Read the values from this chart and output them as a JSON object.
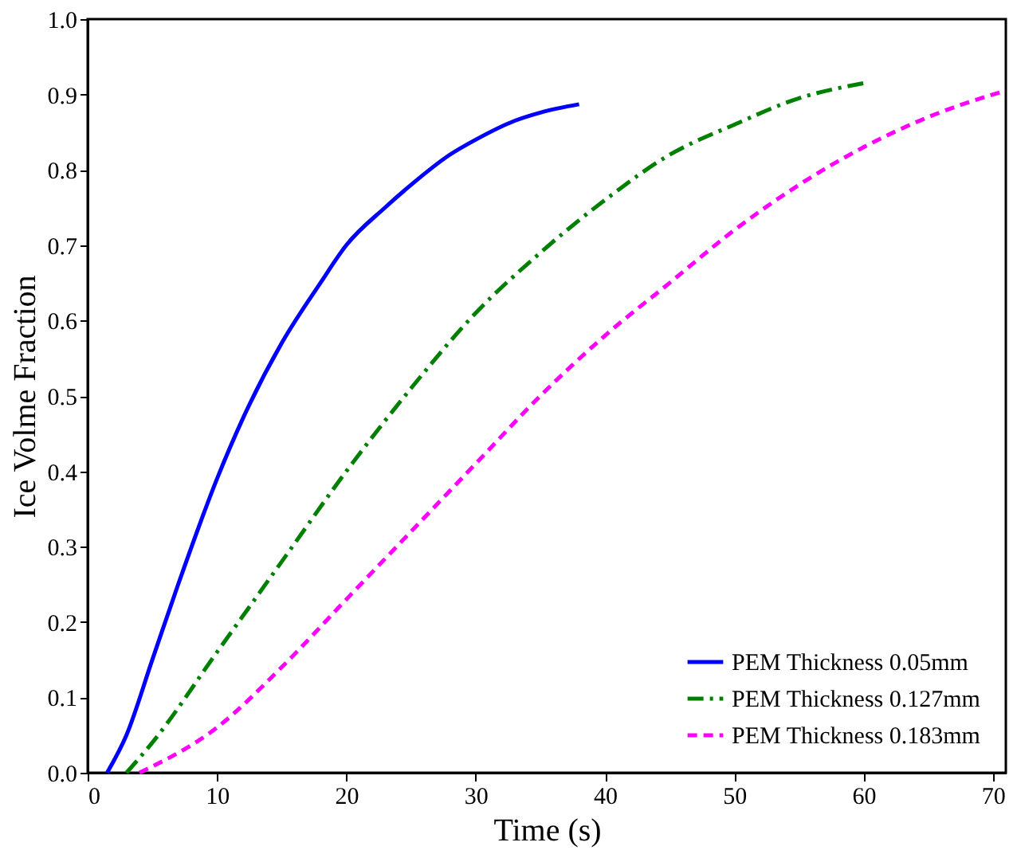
{
  "chart_data": {
    "type": "line",
    "xlabel": "Time (s)",
    "ylabel": "Ice Volme Fraction",
    "xlim": [
      0,
      71
    ],
    "xticks": [
      0,
      10,
      20,
      30,
      40,
      50,
      60,
      70
    ],
    "ylim": [
      0,
      1.0
    ],
    "yticks": [
      {
        "value": 0,
        "label": "0.0"
      },
      0.1,
      0.2,
      0.3,
      0.4,
      0.5,
      0.6,
      0.7,
      0.8,
      0.9,
      {
        "value": 1,
        "label": "1.0"
      }
    ],
    "grid": false,
    "legend": "bottom right",
    "series": [
      {
        "name": "PEM Thickness 0.05mm",
        "color": "#0000ff",
        "line_style": "solid",
        "x": [
          1.5,
          3,
          5,
          7,
          10,
          12,
          15,
          18,
          20,
          23,
          25,
          28,
          30,
          33,
          35,
          38
        ],
        "values": [
          0,
          0.05,
          0.15,
          0.25,
          0.39,
          0.47,
          0.57,
          0.65,
          0.7,
          0.75,
          0.78,
          0.82,
          0.84,
          0.865,
          0.876,
          0.887
        ]
      },
      {
        "name": "PEM Thickness 0.127mm",
        "color": "#008000",
        "line_style": "dashdot",
        "x": [
          3,
          5,
          10,
          15,
          20,
          25,
          30,
          35,
          40,
          45,
          50,
          55,
          60
        ],
        "values": [
          0,
          0.04,
          0.16,
          0.28,
          0.4,
          0.51,
          0.61,
          0.69,
          0.76,
          0.82,
          0.86,
          0.895,
          0.915
        ]
      },
      {
        "name": "PEM Thickness 0.183mm",
        "color": "#ff00ff",
        "line_style": "dashed",
        "x": [
          4,
          10,
          15,
          20,
          25,
          30,
          35,
          40,
          45,
          50,
          55,
          60,
          65,
          70,
          71
        ],
        "values": [
          0,
          0.06,
          0.14,
          0.23,
          0.32,
          0.41,
          0.5,
          0.58,
          0.65,
          0.72,
          0.78,
          0.83,
          0.87,
          0.9,
          0.905
        ]
      }
    ]
  }
}
